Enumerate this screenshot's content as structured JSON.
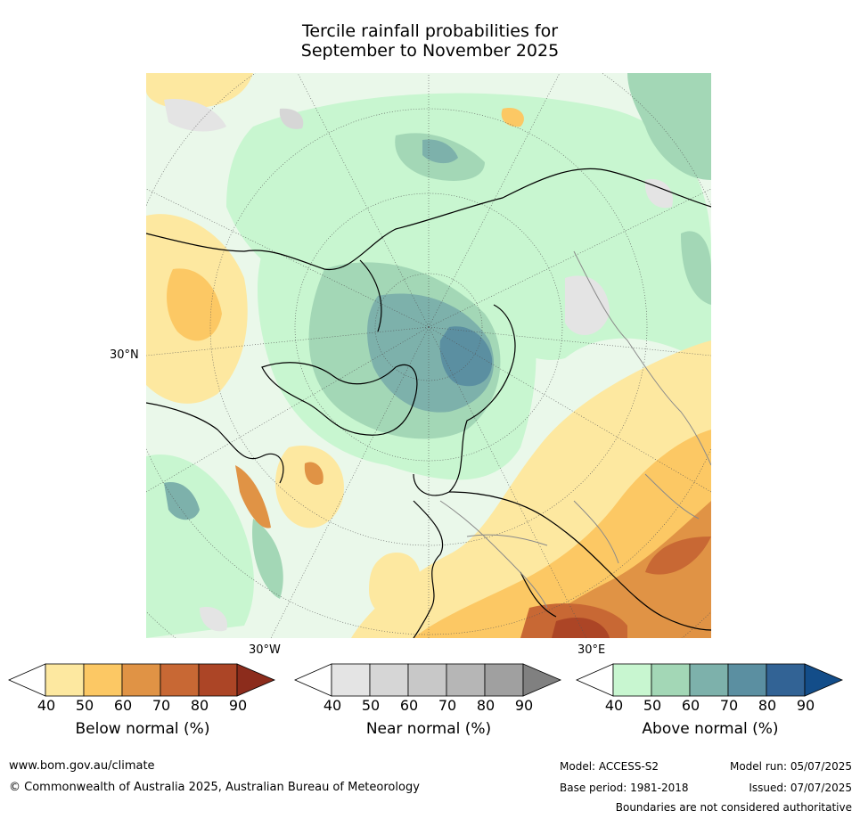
{
  "title": {
    "line1": "Tercile rainfall probabilities for",
    "line2": "September to November 2025"
  },
  "map": {
    "projection": "north polar stereographic",
    "lon_labels": {
      "left": "30°W",
      "right": "30°E"
    },
    "lat_label": "30°N"
  },
  "colorbars": [
    {
      "label": "Below normal (%)",
      "ticks": [
        "40",
        "50",
        "60",
        "70",
        "80",
        "90"
      ],
      "colors": [
        "#ffffff",
        "#fde8a0",
        "#fcc864",
        "#e09345",
        "#c86834",
        "#ac4526",
        "#8c2c1c"
      ]
    },
    {
      "label": "Near normal (%)",
      "ticks": [
        "40",
        "50",
        "60",
        "70",
        "80",
        "90"
      ],
      "colors": [
        "#ffffff",
        "#e4e4e4",
        "#d6d6d6",
        "#c8c8c8",
        "#b6b6b6",
        "#a0a0a0",
        "#808080"
      ]
    },
    {
      "label": "Above normal (%)",
      "ticks": [
        "40",
        "50",
        "60",
        "70",
        "80",
        "90"
      ],
      "colors": [
        "#ffffff",
        "#c8f6d0",
        "#a3d7b6",
        "#7db1ab",
        "#5b8fa1",
        "#326395",
        "#134d89"
      ]
    }
  ],
  "footer": {
    "url": "www.bom.gov.au/climate",
    "copyright": "© Commonwealth of Australia 2025, Australian Bureau of Meteorology",
    "model": "Model: ACCESS-S2",
    "model_run": "Model run: 05/07/2025",
    "base_period": "Base period: 1981-2018",
    "issued": "Issued: 07/07/2025",
    "disclaimer": "Boundaries are not considered authoritative"
  }
}
